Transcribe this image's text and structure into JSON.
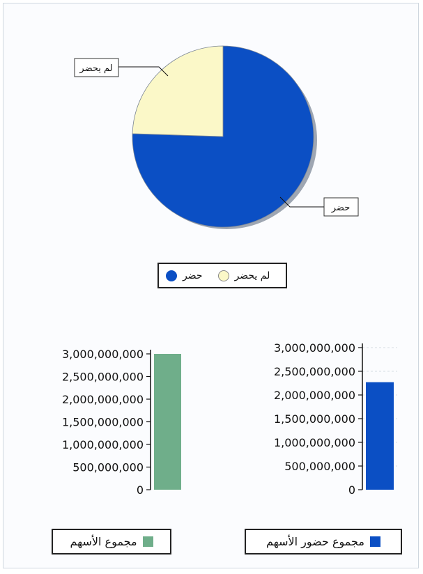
{
  "chart_data": [
    {
      "type": "pie",
      "slices": [
        {
          "label": "حضر",
          "value": 75.5,
          "color": "#0b4fc4"
        },
        {
          "label": "لم يحضر",
          "value": 24.5,
          "color": "#fbf8c8"
        }
      ],
      "legend": [
        "حضر",
        "لم يحضر"
      ]
    },
    {
      "type": "bar",
      "series": [
        {
          "name": "مجموع حضور الأسهم",
          "values": [
            2270000000
          ],
          "color": "#0b4fc4"
        }
      ],
      "ylim": [
        0,
        3000000000
      ],
      "yticks": [
        "3,000,000,000",
        "2,500,000,000",
        "2,000,000,000",
        "1,500,000,000",
        "1,000,000,000",
        "500,000,000",
        "0"
      ],
      "grid": true
    },
    {
      "type": "bar",
      "series": [
        {
          "name": "مجموع الأسهم",
          "values": [
            3000000000
          ],
          "color": "#6fae8a"
        }
      ],
      "ylim": [
        0,
        3000000000
      ],
      "yticks": [
        "3,000,000,000",
        "2,500,000,000",
        "2,000,000,000",
        "1,500,000,000",
        "1,000,000,000",
        "500,000,000",
        "0"
      ],
      "grid": false
    }
  ]
}
